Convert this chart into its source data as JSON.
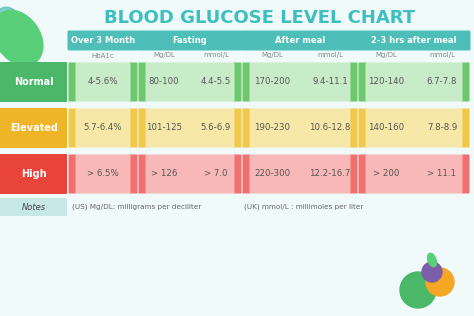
{
  "title": "BLOOD GLUCOSE LEVEL CHART",
  "bg_color": "#f0fafa",
  "title_color": "#3dbfbf",
  "header_bg": "#4dbfb8",
  "header_text_color": "#ffffff",
  "row_labels": [
    "Normal",
    "Elevated",
    "High"
  ],
  "row_label_colors": [
    "#4ab868",
    "#f0b429",
    "#e8443a"
  ],
  "normal_cell_colors_dark": "#6dc86d",
  "normal_cell_colors_light": "#c8ecc8",
  "elevated_cell_colors_dark": "#f0c84a",
  "elevated_cell_colors_light": "#f7e8a8",
  "high_cell_colors_dark": "#f07070",
  "high_cell_colors_light": "#f8b8b8",
  "col_headers": [
    "Over 3 Month",
    "Fasting",
    "After meal",
    "2-3 hrs after meal"
  ],
  "sub_headers_row": [
    "HbA1c",
    "Mg/DL",
    "mmol/L",
    "Mg/DL",
    "mmol/L",
    "Mg/DL",
    "mmol/L"
  ],
  "data_normal": [
    "4-5.6%",
    "80-100",
    "4.4-5.5",
    "170-200",
    "9.4-11.1",
    "120-140",
    "6.7-7.8"
  ],
  "data_elevated": [
    "5.7-6.4%",
    "101-125",
    "5.6-6.9",
    "190-230",
    "10.6-12.8",
    "140-160",
    "7.8-8.9"
  ],
  "data_high": [
    "> 6.5%",
    "> 126",
    "> 7.0",
    "220-300",
    "12.2-16.7",
    "> 200",
    "> 11.1"
  ],
  "notes_left": "(US) Mg/DL: milligrams per deciliter",
  "notes_right": "(UK) mmol/L : millimoles per liter",
  "notes_label": "Notes",
  "cell_text_color": "#555555",
  "subheader_text_color": "#888888",
  "leaf_green": "#4dbfb8",
  "leaf_green2": "#5acf7a",
  "deco_green": "#4ab868",
  "deco_orange": "#f5a623",
  "deco_purple": "#7b5ea7"
}
